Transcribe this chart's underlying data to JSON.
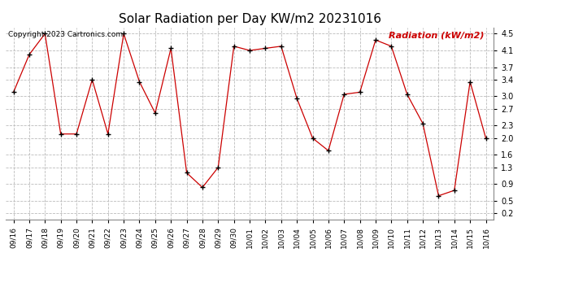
{
  "title": "Solar Radiation per Day KW/m2 20231016",
  "copyright_text": "Copyright 2023 Cartronics.com",
  "legend_text": "Radiation (kW/m2)",
  "dates": [
    "09/16",
    "09/17",
    "09/18",
    "09/19",
    "09/20",
    "09/21",
    "09/22",
    "09/23",
    "09/24",
    "09/25",
    "09/26",
    "09/27",
    "09/28",
    "09/29",
    "09/30",
    "10/01",
    "10/02",
    "10/03",
    "10/04",
    "10/05",
    "10/06",
    "10/07",
    "10/08",
    "10/09",
    "10/10",
    "10/11",
    "10/12",
    "10/13",
    "10/14",
    "10/15",
    "10/16"
  ],
  "values": [
    3.1,
    4.0,
    4.5,
    2.1,
    2.1,
    3.4,
    2.1,
    4.5,
    3.35,
    2.6,
    4.15,
    1.17,
    0.82,
    1.3,
    4.2,
    4.1,
    4.15,
    4.2,
    2.95,
    2.0,
    1.7,
    3.05,
    3.1,
    4.35,
    4.2,
    3.05,
    2.35,
    0.62,
    0.75,
    3.35,
    2.0
  ],
  "line_color": "#cc0000",
  "marker": "+",
  "marker_color": "#000000",
  "bg_color": "#ffffff",
  "grid_color": "#bbbbbb",
  "yticks": [
    0.2,
    0.5,
    0.9,
    1.3,
    1.6,
    2.0,
    2.3,
    2.7,
    3.0,
    3.4,
    3.7,
    4.1,
    4.5
  ],
  "ylim": [
    0.05,
    4.65
  ],
  "title_fontsize": 11,
  "legend_fontsize": 8,
  "copyright_fontsize": 6.5,
  "tick_fontsize": 6.5,
  "ytick_fontsize": 7
}
